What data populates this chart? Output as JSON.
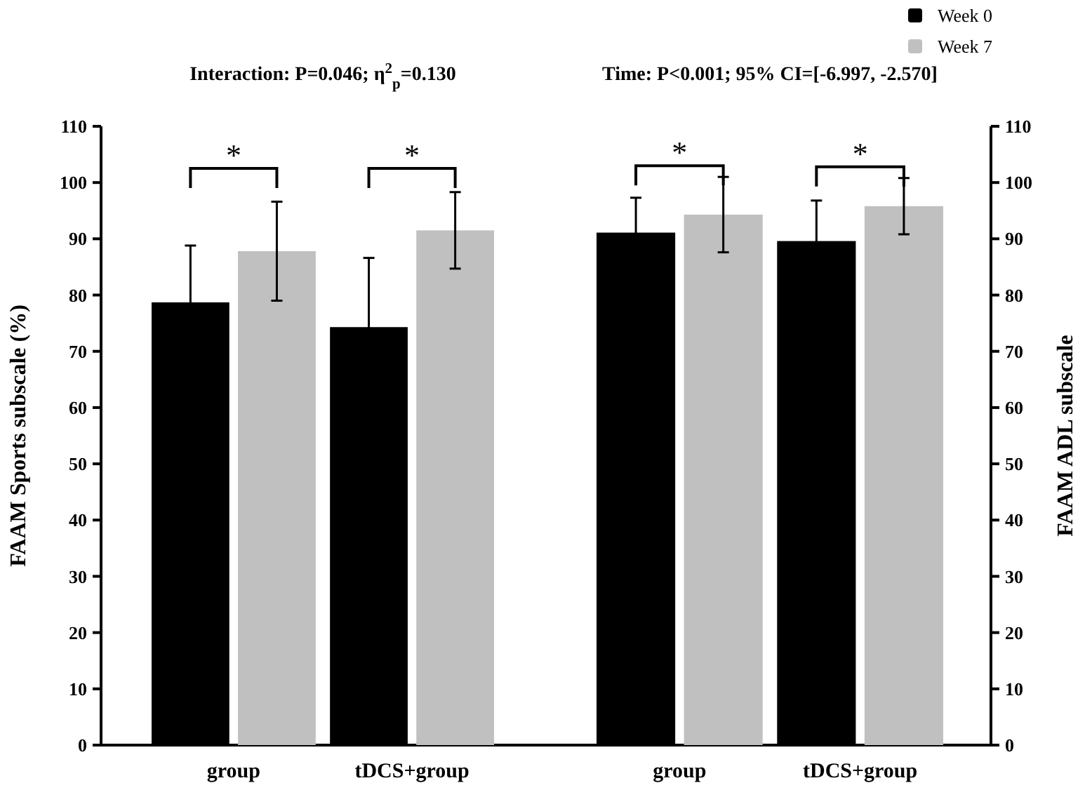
{
  "chart_data": [
    {
      "type": "bar",
      "title": "Interaction: P=0.046; η$^{2}$$_{p}$=0.130",
      "ylabel": "FAAM Sports subscale (%)",
      "categories": [
        "group",
        "tDCS+group"
      ],
      "series": [
        {
          "color": "#000000",
          "values": [
            78.7,
            74.3
          ],
          "errors": [
            10.1,
            12.3
          ]
        },
        {
          "color": "#c0c0c0",
          "values": [
            87.8,
            91.5
          ],
          "errors": [
            8.8,
            6.8
          ]
        }
      ],
      "ylim": [
        0,
        110
      ],
      "yticks": [
        0,
        10,
        20,
        30,
        40,
        50,
        60,
        70,
        80,
        90,
        100,
        110
      ],
      "annotations": [
        "*",
        "*"
      ],
      "legend": false
    },
    {
      "type": "bar",
      "title": "Time: P<0.001; 95% CI=[-6.997, -2.570]",
      "y2label": "FAAM ADL subscale",
      "categories": [
        "group",
        "tDCS+group"
      ],
      "series": [
        {
          "name": "Week 0",
          "color": "#000000",
          "values": [
            91.1,
            89.6
          ],
          "errors": [
            6.2,
            7.2
          ],
          "axis": "y2"
        },
        {
          "name": "Week 7",
          "color": "#c0c0c0",
          "values": [
            94.3,
            95.8
          ],
          "errors": [
            6.7,
            5.0
          ],
          "axis": "y2"
        }
      ],
      "y2lim": [
        0,
        110
      ],
      "y2ticks": [
        0,
        10,
        20,
        30,
        40,
        50,
        60,
        70,
        80,
        90,
        100,
        110
      ],
      "annotations": [
        "*",
        "*"
      ],
      "legend": "top right"
    }
  ]
}
